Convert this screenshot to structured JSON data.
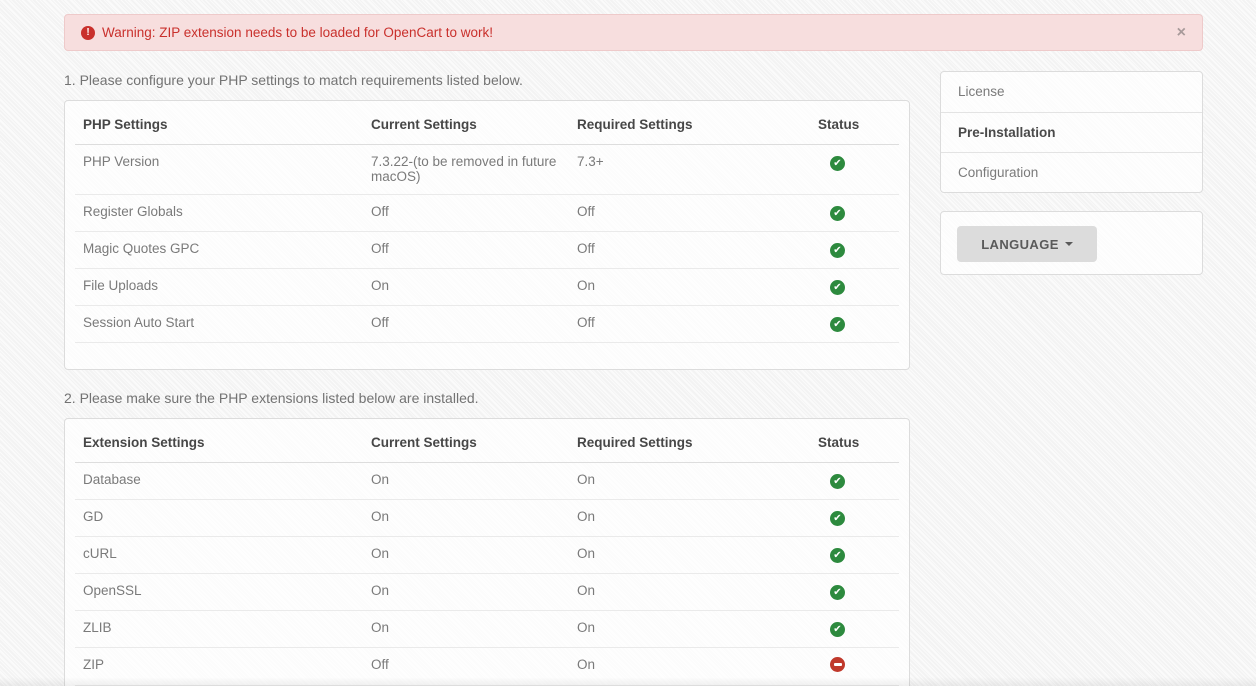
{
  "banner": {
    "text": "Warning: ZIP extension needs to be loaded for OpenCart to work!",
    "close_label": "×",
    "icon": "exclamation-circle-icon"
  },
  "sections": [
    {
      "heading": "1. Please configure your PHP settings to match requirements listed below."
    },
    {
      "heading": "2. Please make sure the PHP extensions listed below are installed."
    }
  ],
  "tables": [
    {
      "name": "php-settings-table",
      "headers": [
        "PHP Settings",
        "Current Settings",
        "Required Settings",
        "Status"
      ],
      "rows": [
        {
          "name": "PHP Version",
          "current": "7.3.22-(to be removed in future macOS)",
          "required": "7.3+",
          "status": "ok"
        },
        {
          "name": "Register Globals",
          "current": "Off",
          "required": "Off",
          "status": "ok"
        },
        {
          "name": "Magic Quotes GPC",
          "current": "Off",
          "required": "Off",
          "status": "ok"
        },
        {
          "name": "File Uploads",
          "current": "On",
          "required": "On",
          "status": "ok"
        },
        {
          "name": "Session Auto Start",
          "current": "Off",
          "required": "Off",
          "status": "ok"
        }
      ]
    },
    {
      "name": "extension-settings-table",
      "headers": [
        "Extension Settings",
        "Current Settings",
        "Required Settings",
        "Status"
      ],
      "rows": [
        {
          "name": "Database",
          "current": "On",
          "required": "On",
          "status": "ok"
        },
        {
          "name": "GD",
          "current": "On",
          "required": "On",
          "status": "ok"
        },
        {
          "name": "cURL",
          "current": "On",
          "required": "On",
          "status": "ok"
        },
        {
          "name": "OpenSSL",
          "current": "On",
          "required": "On",
          "status": "ok"
        },
        {
          "name": "ZLIB",
          "current": "On",
          "required": "On",
          "status": "ok"
        },
        {
          "name": "ZIP",
          "current": "Off",
          "required": "On",
          "status": "fail"
        }
      ]
    }
  ],
  "sidebar": {
    "items": [
      {
        "label": "License",
        "active": false
      },
      {
        "label": "Pre-Installation",
        "active": true
      },
      {
        "label": "Configuration",
        "active": false
      }
    ]
  },
  "language": {
    "label": "LANGUAGE"
  },
  "colors": {
    "status_ok": "#2d8a3e",
    "status_fail": "#c0392b",
    "warning_text": "#c9302c",
    "warning_bg": "#f7dede"
  }
}
